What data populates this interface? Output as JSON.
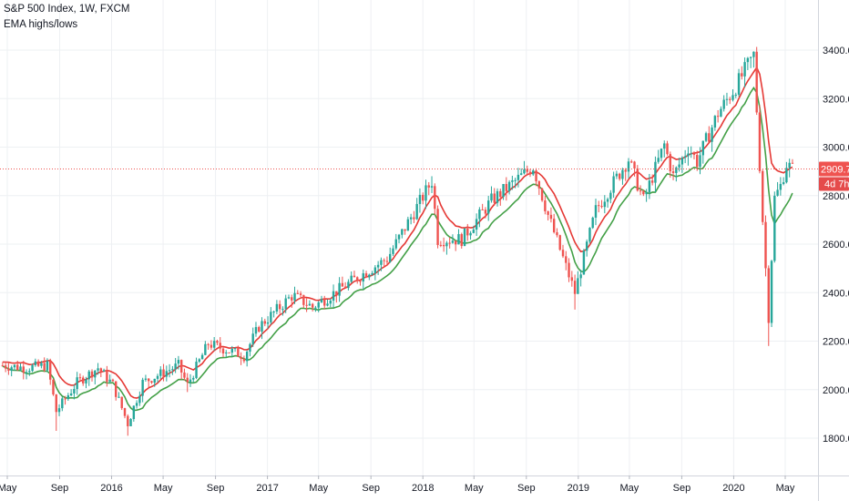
{
  "legend": {
    "title": "S&P 500 Index, 1W, FXCM",
    "indicator": "EMA highs/lows"
  },
  "price_label": {
    "value": "2909.7",
    "countdown": "4d 7h"
  },
  "colors": {
    "up": "#26a69a",
    "down": "#ef5350",
    "ema_high": "#e53935",
    "ema_low": "#43a047",
    "price_line": "#ef5350",
    "grid": "#eef0f3",
    "axis_text": "#131722"
  },
  "chart_data": {
    "type": "candlestick",
    "title": "S&P 500 Index, 1W, FXCM",
    "xlabel": "",
    "ylabel": "",
    "ylim": [
      1700,
      3520
    ],
    "grid": true,
    "y_ticks": [
      "1800.0",
      "2000.0",
      "2200.0",
      "2400.0",
      "2600.0",
      "2800.0",
      "3000.0",
      "3200.0",
      "3400.0"
    ],
    "x_ticks": [
      "May",
      "Sep",
      "2016",
      "May",
      "Sep",
      "2017",
      "May",
      "Sep",
      "2018",
      "May",
      "Sep",
      "2019",
      "May",
      "Sep",
      "2020",
      "May"
    ],
    "last_price": 2909.7,
    "anchors": {
      "dates": [
        "2015-04-20",
        "2015-06-15",
        "2015-08-03",
        "2015-08-24",
        "2015-10-12",
        "2015-11-30",
        "2016-01-04",
        "2016-02-08",
        "2016-03-14",
        "2016-06-06",
        "2016-06-27",
        "2016-08-15",
        "2016-11-07",
        "2016-12-12",
        "2017-03-01",
        "2017-04-17",
        "2017-08-07",
        "2017-10-09",
        "2018-01-22",
        "2018-02-05",
        "2018-04-02",
        "2018-06-11",
        "2018-09-17",
        "2018-10-22",
        "2018-12-24",
        "2019-02-11",
        "2019-04-29",
        "2019-06-03",
        "2019-07-22",
        "2019-08-12",
        "2019-09-16",
        "2019-10-07",
        "2019-11-25",
        "2020-01-06",
        "2020-02-17",
        "2020-03-09",
        "2020-03-23",
        "2020-04-06",
        "2020-04-20",
        "2020-05-04",
        "2020-05-18"
      ],
      "close": [
        2100,
        2090,
        2100,
        1910,
        2030,
        2090,
        2020,
        1860,
        2030,
        2100,
        2020,
        2190,
        2140,
        2260,
        2390,
        2340,
        2470,
        2540,
        2860,
        2620,
        2620,
        2780,
        2920,
        2720,
        2400,
        2740,
        2950,
        2780,
        3010,
        2880,
        3000,
        2940,
        3140,
        3250,
        3380,
        2700,
        2300,
        2790,
        2840,
        2930,
        2910
      ]
    }
  }
}
